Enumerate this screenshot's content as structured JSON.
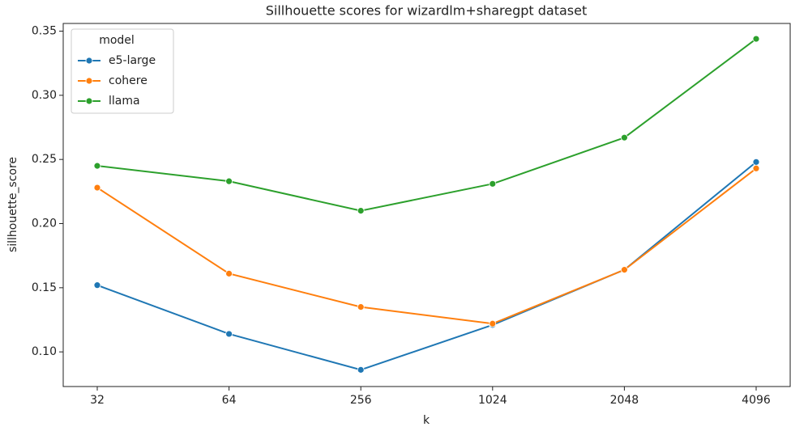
{
  "chart_data": {
    "type": "line",
    "title": "Sillhouette scores for wizardlm+sharegpt dataset",
    "x_label": "k",
    "y_label": "sillhouette_score",
    "categories": [
      "32",
      "64",
      "256",
      "1024",
      "2048",
      "4096"
    ],
    "series": [
      {
        "name": "e5-large",
        "color": "#1f77b4",
        "values": [
          0.152,
          0.114,
          0.086,
          0.121,
          0.164,
          0.248
        ]
      },
      {
        "name": "cohere",
        "color": "#ff7f0e",
        "values": [
          0.228,
          0.161,
          0.135,
          0.122,
          0.164,
          0.243
        ]
      },
      {
        "name": "llama",
        "color": "#2ca02c",
        "values": [
          0.245,
          0.233,
          0.21,
          0.231,
          0.267,
          0.344
        ]
      }
    ],
    "ylim": [
      0.073,
      0.356
    ],
    "yticks": [
      {
        "value": 0.1,
        "label": "0.10"
      },
      {
        "value": 0.15,
        "label": "0.15"
      },
      {
        "value": 0.2,
        "label": "0.20"
      },
      {
        "value": 0.25,
        "label": "0.25"
      },
      {
        "value": 0.3,
        "label": "0.30"
      },
      {
        "value": 0.35,
        "label": "0.35"
      }
    ],
    "legend_title": "model",
    "legend": "upper left",
    "grid": false
  }
}
